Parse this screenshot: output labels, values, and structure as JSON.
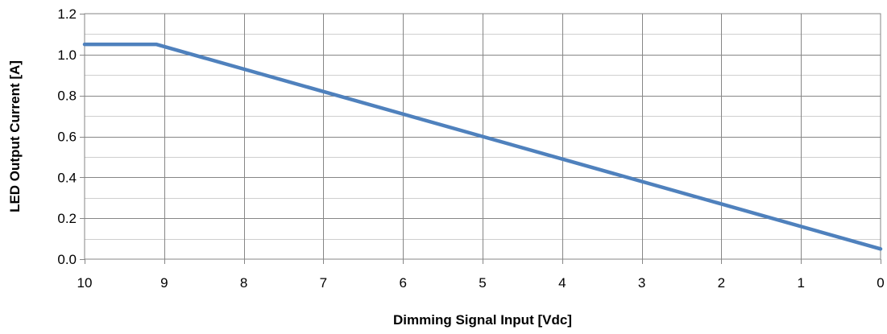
{
  "chart_data": {
    "type": "line",
    "title": "",
    "xlabel": "Dimming Signal Input [Vdc]",
    "ylabel": "LED Output Current [A]",
    "xlim": [
      10,
      0
    ],
    "ylim": [
      0,
      1.2
    ],
    "x_reversed": true,
    "x_ticks": [
      "10",
      "9",
      "8",
      "7",
      "6",
      "5",
      "4",
      "3",
      "2",
      "1",
      "0"
    ],
    "y_ticks": [
      "0.0",
      "0.2",
      "0.4",
      "0.6",
      "0.8",
      "1.0",
      "1.2"
    ],
    "grid": true,
    "minor_grid": true,
    "legend": "none",
    "series": [
      {
        "color": "#4f81bd",
        "x": [
          10,
          9.1,
          0
        ],
        "y": [
          1.05,
          1.05,
          0.05
        ]
      }
    ]
  }
}
